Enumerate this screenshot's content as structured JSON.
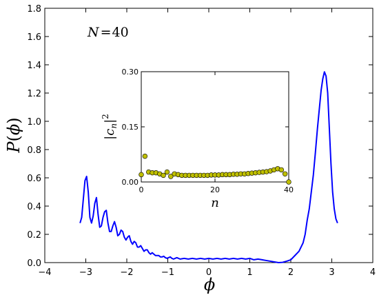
{
  "chart_data": [
    {
      "type": "line",
      "xlabel": "ϕ",
      "ylabel_main": "P",
      "ylabel_arg": "ϕ",
      "annotation": {
        "lhs": "N",
        "op": "=",
        "rhs": "40"
      },
      "xlim": [
        -4,
        4
      ],
      "ylim": [
        0,
        1.8
      ],
      "xticks": [
        -4,
        -3,
        -2,
        -1,
        0,
        1,
        2,
        3,
        4
      ],
      "xtick_labels": [
        "−4",
        "−3",
        "−2",
        "−1",
        "0",
        "1",
        "2",
        "3",
        "4"
      ],
      "yticks": [
        0,
        0.2,
        0.4,
        0.6,
        0.8,
        1.0,
        1.2,
        1.4,
        1.6,
        1.8
      ],
      "ytick_labels": [
        "0.0",
        "0.2",
        "0.4",
        "0.6",
        "0.8",
        "1.0",
        "1.2",
        "1.4",
        "1.6",
        "1.8"
      ],
      "grid": false,
      "line_color": "#0000ff",
      "series": [
        {
          "x": [
            -3.14,
            -3.1,
            -3.06,
            -3.02,
            -2.98,
            -2.94,
            -2.9,
            -2.86,
            -2.82,
            -2.78,
            -2.74,
            -2.7,
            -2.66,
            -2.62,
            -2.58,
            -2.54,
            -2.5,
            -2.46,
            -2.42,
            -2.38,
            -2.34,
            -2.3,
            -2.26,
            -2.22,
            -2.18,
            -2.14,
            -2.1,
            -2.06,
            -2.02,
            -1.98,
            -1.94,
            -1.9,
            -1.86,
            -1.82,
            -1.78,
            -1.74,
            -1.7,
            -1.66,
            -1.62,
            -1.58,
            -1.54,
            -1.5,
            -1.46,
            -1.42,
            -1.38,
            -1.34,
            -1.3,
            -1.26,
            -1.22,
            -1.18,
            -1.14,
            -1.1,
            -1.06,
            -1.02,
            -0.98,
            -0.94,
            -0.9,
            -0.86,
            -0.82,
            -0.78,
            -0.74,
            -0.7,
            -0.6,
            -0.5,
            -0.4,
            -0.3,
            -0.2,
            -0.1,
            0.0,
            0.1,
            0.2,
            0.3,
            0.4,
            0.5,
            0.6,
            0.7,
            0.8,
            0.9,
            1.0,
            1.1,
            1.2,
            1.3,
            1.4,
            1.5,
            1.6,
            1.7,
            1.8,
            1.9,
            2.0,
            2.1,
            2.2,
            2.3,
            2.35,
            2.4,
            2.45,
            2.5,
            2.55,
            2.6,
            2.65,
            2.7,
            2.74,
            2.78,
            2.82,
            2.86,
            2.9,
            2.94,
            2.98,
            3.02,
            3.06,
            3.1,
            3.14
          ],
          "y": [
            0.28,
            0.32,
            0.45,
            0.58,
            0.61,
            0.5,
            0.32,
            0.28,
            0.33,
            0.42,
            0.46,
            0.34,
            0.25,
            0.26,
            0.32,
            0.36,
            0.37,
            0.28,
            0.22,
            0.22,
            0.26,
            0.29,
            0.25,
            0.19,
            0.2,
            0.23,
            0.22,
            0.18,
            0.16,
            0.18,
            0.19,
            0.15,
            0.13,
            0.15,
            0.14,
            0.11,
            0.11,
            0.12,
            0.1,
            0.08,
            0.09,
            0.09,
            0.07,
            0.06,
            0.07,
            0.06,
            0.05,
            0.05,
            0.05,
            0.04,
            0.04,
            0.045,
            0.035,
            0.03,
            0.035,
            0.04,
            0.03,
            0.025,
            0.03,
            0.035,
            0.03,
            0.025,
            0.03,
            0.025,
            0.03,
            0.025,
            0.03,
            0.025,
            0.03,
            0.025,
            0.03,
            0.025,
            0.03,
            0.025,
            0.03,
            0.025,
            0.03,
            0.025,
            0.03,
            0.02,
            0.025,
            0.02,
            0.015,
            0.01,
            0.005,
            0.0,
            0.002,
            0.01,
            0.02,
            0.05,
            0.08,
            0.14,
            0.2,
            0.3,
            0.38,
            0.5,
            0.62,
            0.78,
            0.95,
            1.1,
            1.22,
            1.3,
            1.35,
            1.32,
            1.2,
            0.95,
            0.7,
            0.5,
            0.38,
            0.31,
            0.28
          ]
        }
      ]
    },
    {
      "type": "scatter",
      "xlabel": "n",
      "ylabel_var": "c",
      "ylabel_sub": "n",
      "ylabel_sup": "2",
      "xlim": [
        0,
        40
      ],
      "ylim": [
        0,
        0.3
      ],
      "xticks": [
        0,
        20,
        40
      ],
      "xtick_labels": [
        "0",
        "20",
        "40"
      ],
      "yticks": [
        0,
        0.15,
        0.3
      ],
      "ytick_labels": [
        "0.00",
        "0.15",
        "0.30"
      ],
      "grid": false,
      "marker_color": "#bfbf00",
      "series": [
        {
          "x": [
            0,
            1,
            2,
            3,
            4,
            5,
            6,
            7,
            8,
            9,
            10,
            11,
            12,
            13,
            14,
            15,
            16,
            17,
            18,
            19,
            20,
            21,
            22,
            23,
            24,
            25,
            26,
            27,
            28,
            29,
            30,
            31,
            32,
            33,
            34,
            35,
            36,
            37,
            38,
            39,
            40
          ],
          "y": [
            0.02,
            0.07,
            0.027,
            0.025,
            0.025,
            0.022,
            0.018,
            0.027,
            0.015,
            0.022,
            0.02,
            0.018,
            0.018,
            0.018,
            0.018,
            0.018,
            0.018,
            0.018,
            0.018,
            0.019,
            0.019,
            0.019,
            0.02,
            0.02,
            0.02,
            0.021,
            0.021,
            0.022,
            0.022,
            0.023,
            0.024,
            0.025,
            0.026,
            0.027,
            0.028,
            0.03,
            0.033,
            0.036,
            0.033,
            0.022,
            0.0
          ]
        }
      ]
    }
  ]
}
